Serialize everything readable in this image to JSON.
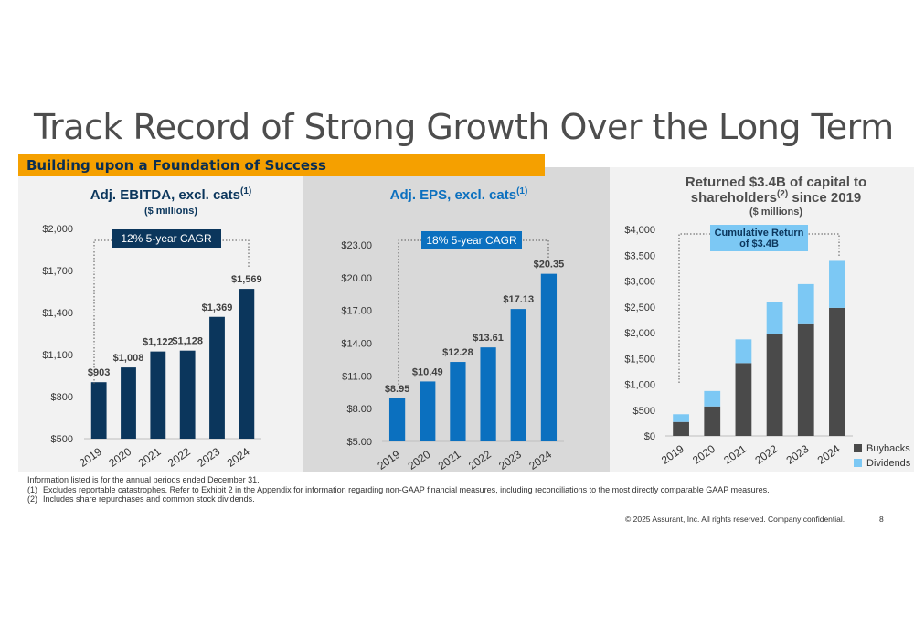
{
  "page": {
    "title": "Track Record of Strong Growth Over the Long Term",
    "banner": "Building upon a Foundation of Success",
    "footnotes": {
      "intro": "Information listed is for the annual periods ended December 31.",
      "items": [
        {
          "num": "(1)",
          "text": "Excludes reportable catastrophes. Refer to Exhibit 2 in the Appendix for information regarding non-GAAP financial measures, including reconciliations to the most directly comparable GAAP measures."
        },
        {
          "num": "(2)",
          "text": "Includes share repurchases and common stock dividends."
        }
      ]
    },
    "copyright": "© 2025 Assurant, Inc. All rights reserved. Company confidential.",
    "page_number": "8"
  },
  "chart_data": [
    {
      "type": "bar",
      "title": "Adj. EBITDA, excl. cats",
      "title_sup": "(1)",
      "subtitle": "($ millions)",
      "categories": [
        "2019",
        "2020",
        "2021",
        "2022",
        "2023",
        "2024"
      ],
      "values": [
        903,
        1008,
        1122,
        1128,
        1369,
        1569
      ],
      "value_labels": [
        "$903",
        "$1,008",
        "$1,122",
        "$1,128",
        "$1,369",
        "$1,569"
      ],
      "ylim": [
        500,
        2000
      ],
      "yticks": [
        500,
        800,
        1100,
        1400,
        1700,
        2000
      ],
      "ytick_labels": [
        "$500",
        "$800",
        "$1,100",
        "$1,400",
        "$1,700",
        "$2,000"
      ],
      "annotation": "12% 5-year CAGR",
      "bar_color": "#0b365c",
      "title_color": "#0b365c",
      "grid": false
    },
    {
      "type": "bar",
      "title": "Adj. EPS, excl. cats",
      "title_sup": "(1)",
      "subtitle": "",
      "categories": [
        "2019",
        "2020",
        "2021",
        "2022",
        "2023",
        "2024"
      ],
      "values": [
        8.95,
        10.49,
        12.28,
        13.61,
        17.13,
        20.35
      ],
      "value_labels": [
        "$8.95",
        "$10.49",
        "$12.28",
        "$13.61",
        "$17.13",
        "$20.35"
      ],
      "ylim": [
        5,
        23
      ],
      "yticks": [
        5,
        8,
        11,
        14,
        17,
        20,
        23
      ],
      "ytick_labels": [
        "$5.00",
        "$8.00",
        "$11.00",
        "$14.00",
        "$17.00",
        "$20.00",
        "$23.00"
      ],
      "annotation": "18% 5-year CAGR",
      "bar_color": "#0b70bf",
      "title_color": "#0b70bf",
      "grid": false
    },
    {
      "type": "bar",
      "stacked": true,
      "title_lines": [
        "Returned $3.4B of capital to",
        "shareholders since 2019"
      ],
      "title_sup": "(2)",
      "subtitle": "($ millions)",
      "categories": [
        "2019",
        "2020",
        "2021",
        "2022",
        "2023",
        "2024"
      ],
      "series": [
        {
          "name": "Buybacks",
          "values": [
            270,
            570,
            1410,
            1980,
            2180,
            2480
          ],
          "color": "#4a4a4a"
        },
        {
          "name": "Dividends",
          "values": [
            150,
            300,
            460,
            610,
            760,
            910
          ],
          "color": "#7cc8f4"
        }
      ],
      "ylim": [
        0,
        4000
      ],
      "yticks": [
        0,
        500,
        1000,
        1500,
        2000,
        2500,
        3000,
        3500,
        4000
      ],
      "ytick_labels": [
        "$0",
        "$500",
        "$1,000",
        "$1,500",
        "$2,000",
        "$2,500",
        "$3,000",
        "$3,500",
        "$4,000"
      ],
      "annotation_lines": [
        "Cumulative Return",
        "of $3.4B"
      ],
      "legend_position": "bottom-right",
      "title_color": "#4d4d4d",
      "grid": false
    }
  ]
}
